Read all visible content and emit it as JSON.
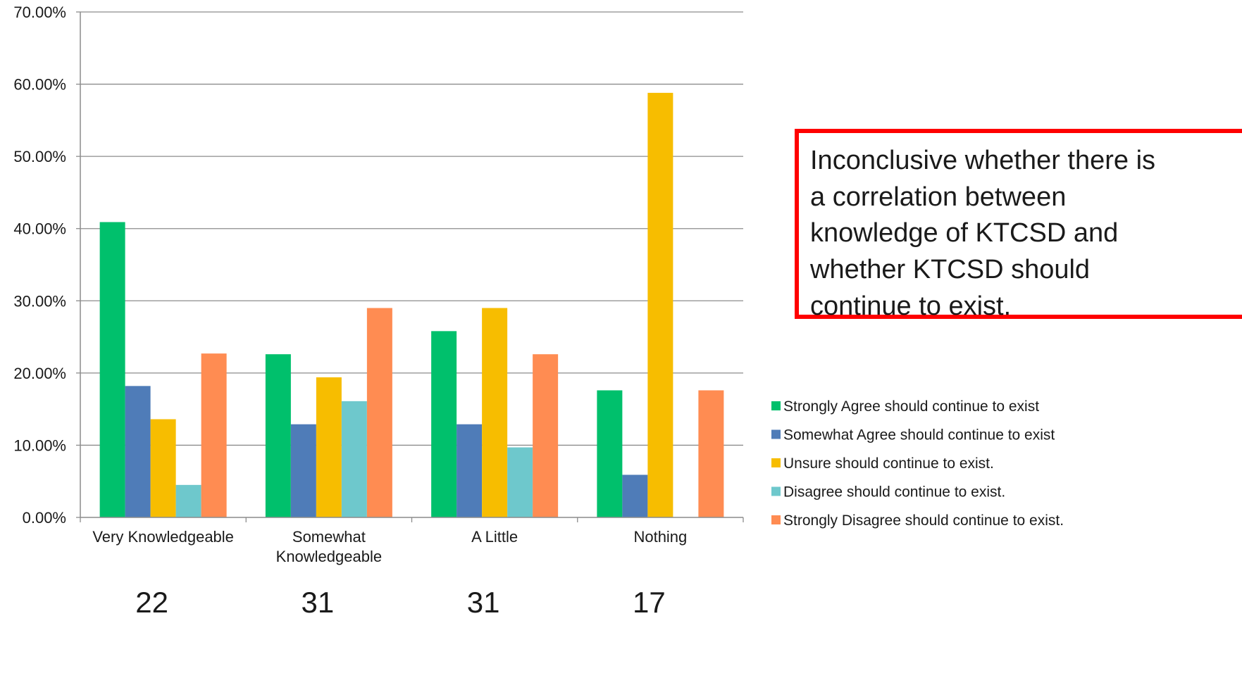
{
  "colors": {
    "grid": "#8c8c8c",
    "axis": "#8c8c8c",
    "callout_border": "#ff0000"
  },
  "callout": {
    "text": "Inconclusive whether there is\na correlation between\nknowledge of KTCSD and\nwhether KTCSD should\ncontinue to exist."
  },
  "counts": [
    "22",
    "31",
    "31",
    "17"
  ],
  "chart_data": {
    "type": "bar",
    "title": "",
    "xlabel": "",
    "ylabel": "",
    "categories": [
      "Very Knowledgeable",
      "Somewhat Knowledgeable",
      "A Little",
      "Nothing"
    ],
    "category_lines": [
      [
        "Very Knowledgeable"
      ],
      [
        "Somewhat",
        "Knowledgeable"
      ],
      [
        "A Little"
      ],
      [
        "Nothing"
      ]
    ],
    "ylim": [
      0,
      70
    ],
    "yticks": [
      "0.00%",
      "10.00%",
      "20.00%",
      "30.00%",
      "40.00%",
      "50.00%",
      "60.00%",
      "70.00%"
    ],
    "grid": true,
    "legend": "right",
    "series": [
      {
        "name": "Strongly Agree should continue to exist",
        "color": "#00c06c",
        "values": [
          40.9,
          22.6,
          25.8,
          17.6
        ]
      },
      {
        "name": "Somewhat Agree should continue to exist",
        "color": "#4f7cb8",
        "values": [
          18.2,
          12.9,
          12.9,
          5.9
        ]
      },
      {
        "name": "Unsure  should continue to exist.",
        "color": "#f7bd00",
        "values": [
          13.6,
          19.4,
          29.0,
          58.8
        ]
      },
      {
        "name": "Disagree should continue to exist.",
        "color": "#6ec8cc",
        "values": [
          4.5,
          16.1,
          9.7,
          0
        ]
      },
      {
        "name": "Strongly Disagree should continue to exist.",
        "color": "#ff8c52",
        "values": [
          22.7,
          29.0,
          22.6,
          17.6
        ]
      }
    ]
  }
}
